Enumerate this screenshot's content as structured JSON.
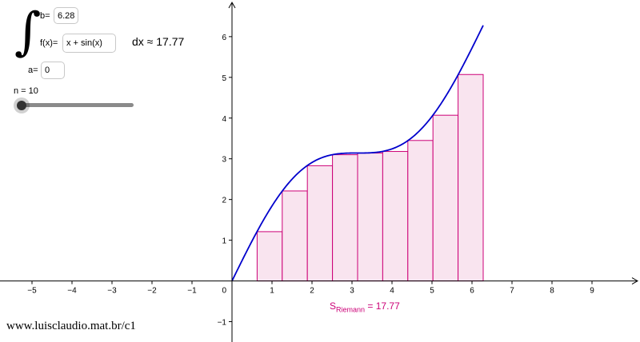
{
  "panel": {
    "upper_label": "b=",
    "upper_value": "6.28",
    "function_label": "f(x)=",
    "function_value": "x + sin(x)",
    "lower_label": "a=",
    "lower_value": "0",
    "dx_text": "dx ≈ 17.77",
    "slider_label": "n = 10",
    "slider_value": 10,
    "slider_min": 1,
    "slider_max": 100
  },
  "riemann_label": {
    "s": "S",
    "subscript": "Riemann",
    "value_text": "= 17.77"
  },
  "footer_text": "www.luisclaudio.mat.br/c1",
  "colors": {
    "curve": "#0000cc",
    "rect_stroke": "#cc0077",
    "rect_fill": "#f9e4ef",
    "axis": "#000000"
  },
  "chart_data": {
    "type": "area",
    "function": "x + sin(x)",
    "a": 0,
    "b": 6.28,
    "n": 10,
    "riemann_sum": 17.77,
    "xlim": [
      -5.8,
      10.2
    ],
    "ylim": [
      -1.5,
      6.9
    ],
    "x_ticks": [
      -5,
      -4,
      -3,
      -2,
      -1,
      1,
      2,
      3,
      4,
      5,
      6,
      7,
      8,
      9
    ],
    "y_ticks": [
      -1,
      1,
      2,
      3,
      4,
      5,
      6
    ],
    "origin_label": "0",
    "rect_heights": [
      0,
      1.21,
      2.21,
      2.83,
      3.1,
      3.14,
      3.18,
      3.45,
      4.07,
      5.07
    ]
  }
}
